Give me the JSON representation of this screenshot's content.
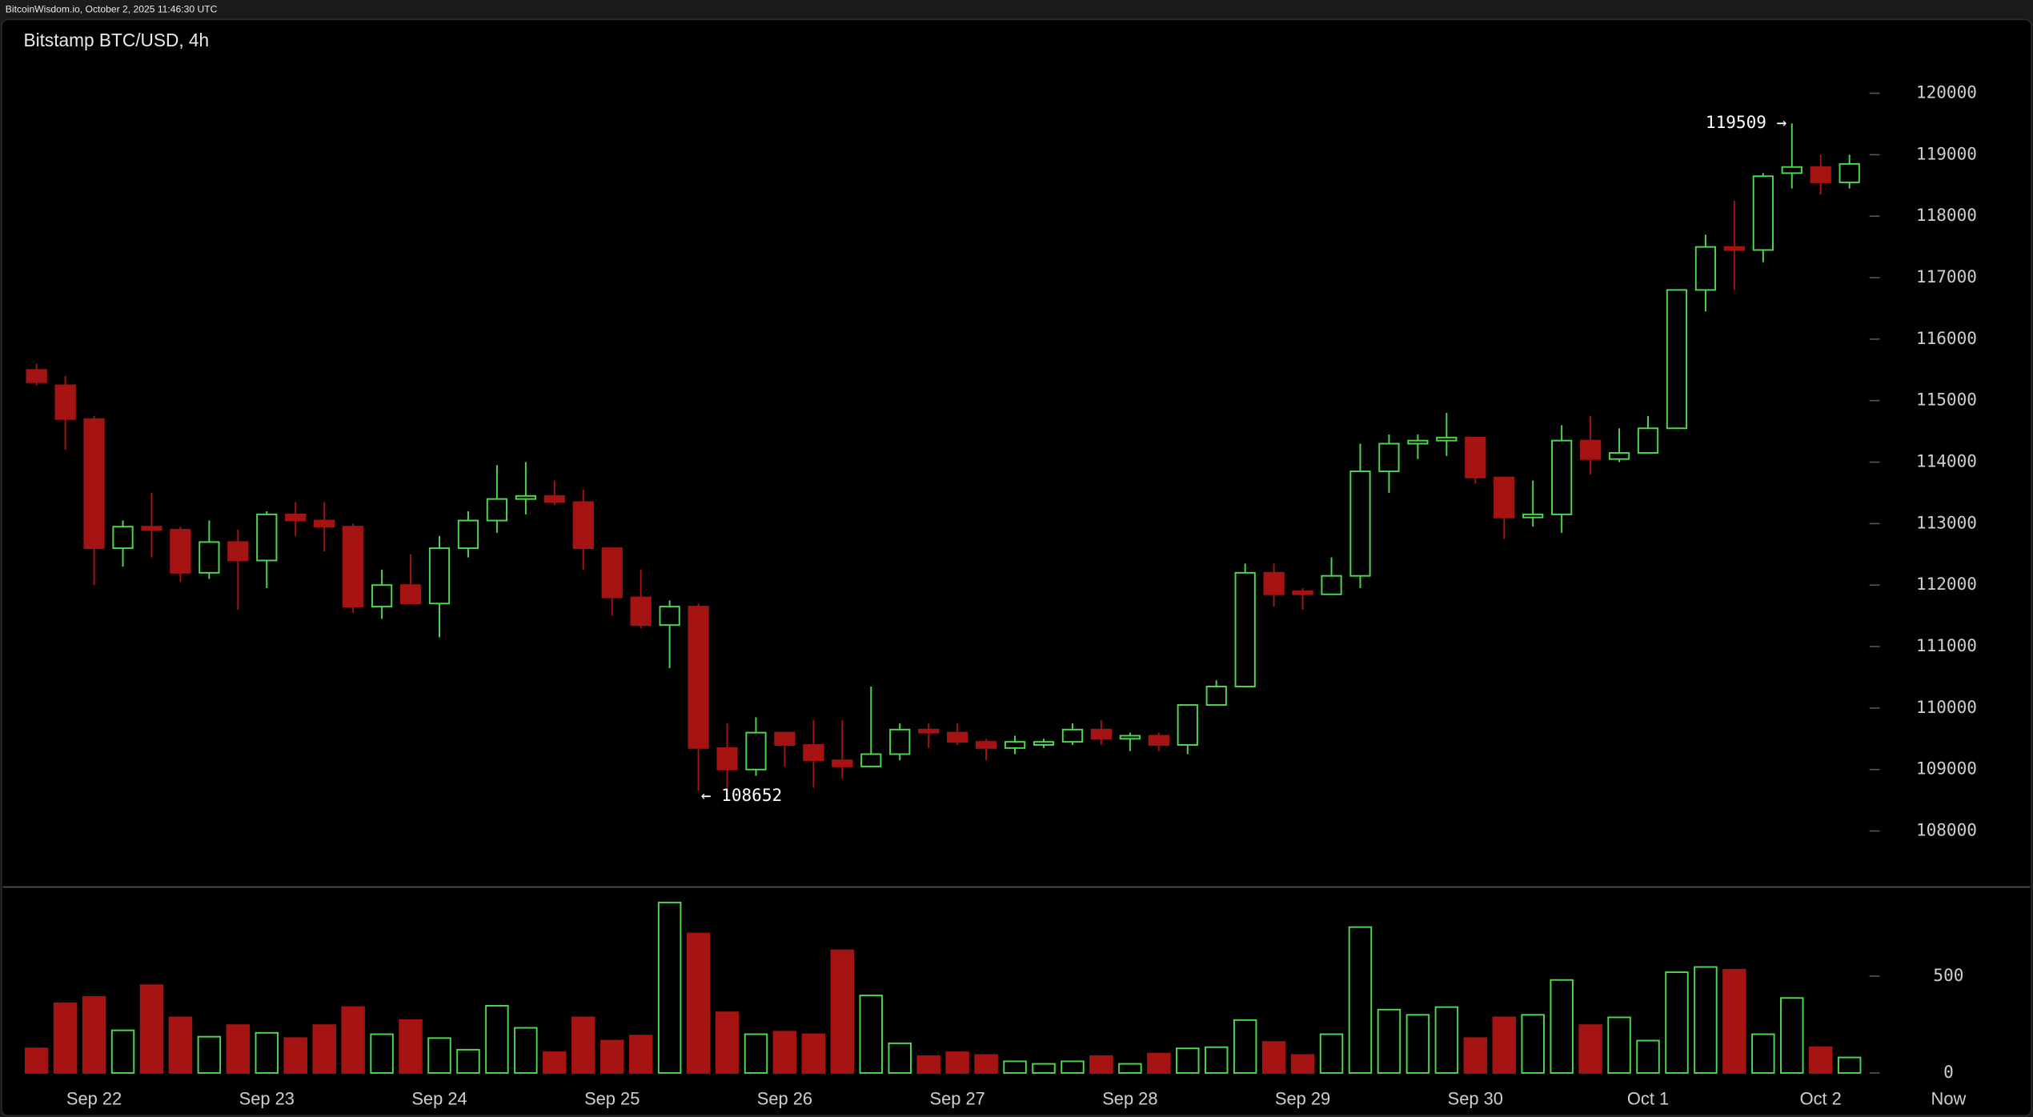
{
  "chart_data": {
    "type": "candlestick",
    "header": "BitcoinWisdom.io, October 2, 2025 11:46:30 UTC",
    "title": "Bitstamp BTC/USD, 4h",
    "categories": [
      null,
      null,
      "Sep 22",
      null,
      null,
      null,
      null,
      null,
      "Sep 23",
      null,
      null,
      null,
      null,
      null,
      "Sep 24",
      null,
      null,
      null,
      null,
      null,
      "Sep 25",
      null,
      null,
      null,
      null,
      null,
      "Sep 26",
      null,
      null,
      null,
      null,
      null,
      "Sep 27",
      null,
      null,
      null,
      null,
      null,
      "Sep 28",
      null,
      null,
      null,
      null,
      null,
      "Sep 29",
      null,
      null,
      null,
      null,
      null,
      "Sep 30",
      null,
      null,
      null,
      null,
      null,
      "Oct 1",
      null,
      null,
      null,
      null,
      null,
      "Oct 2",
      null
    ],
    "now_label": "Now",
    "open": [
      115500,
      115250,
      114700,
      112600,
      112950,
      112900,
      112200,
      112700,
      112400,
      113150,
      113050,
      112950,
      111650,
      112000,
      111700,
      112600,
      113050,
      113400,
      113450,
      113350,
      112600,
      111800,
      111350,
      111650,
      109350,
      109000,
      109600,
      109400,
      109150,
      109050,
      109250,
      109650,
      109600,
      109450,
      109350,
      109400,
      109450,
      109650,
      109500,
      109550,
      109400,
      110050,
      110350,
      112200,
      111900,
      111850,
      112150,
      113850,
      114300,
      114350,
      114400,
      113750,
      113100,
      113150,
      114350,
      114050,
      114150,
      114550,
      116800,
      117500,
      117450,
      118700,
      118800,
      118550
    ],
    "high": [
      115600,
      115400,
      114750,
      113050,
      113500,
      112950,
      113050,
      112900,
      113200,
      113350,
      113350,
      113000,
      112250,
      112500,
      112800,
      113200,
      113950,
      114000,
      113700,
      113550,
      112600,
      112250,
      111750,
      111700,
      109750,
      109850,
      109600,
      109800,
      109800,
      110350,
      109750,
      109750,
      109750,
      109500,
      109550,
      109500,
      109750,
      109800,
      109600,
      109600,
      110050,
      110450,
      112350,
      112350,
      111950,
      112450,
      114300,
      114450,
      114450,
      114800,
      114400,
      113750,
      113700,
      114600,
      114750,
      114550,
      114750,
      116800,
      117700,
      118250,
      118700,
      119509,
      119000,
      119000
    ],
    "low": [
      115250,
      114200,
      112000,
      112300,
      112450,
      112050,
      112100,
      111600,
      111950,
      112800,
      112550,
      111550,
      111450,
      111700,
      111150,
      112450,
      112850,
      113150,
      113300,
      112250,
      111500,
      111300,
      110650,
      108652,
      108700,
      108900,
      109050,
      108700,
      108850,
      109050,
      109150,
      109350,
      109400,
      109150,
      109250,
      109350,
      109400,
      109400,
      109300,
      109300,
      109250,
      110050,
      110350,
      111650,
      111600,
      111900,
      111950,
      113500,
      114050,
      114100,
      113650,
      112750,
      112950,
      112850,
      113800,
      114000,
      114150,
      114550,
      116450,
      116800,
      117250,
      118450,
      118350,
      118450
    ],
    "close": [
      115300,
      114700,
      112600,
      112950,
      112900,
      112200,
      112700,
      112400,
      113150,
      113050,
      112950,
      111650,
      112000,
      111700,
      112600,
      113050,
      113400,
      113450,
      113350,
      112600,
      111800,
      111350,
      111650,
      109350,
      109000,
      109600,
      109400,
      109150,
      109050,
      109250,
      109650,
      109600,
      109450,
      109350,
      109450,
      109450,
      109650,
      109500,
      109550,
      109400,
      110050,
      110350,
      112200,
      111850,
      111850,
      112150,
      113850,
      114300,
      114350,
      114400,
      113750,
      113100,
      113150,
      114350,
      114050,
      114150,
      114550,
      116800,
      117500,
      117450,
      118650,
      118800,
      118550,
      118850
    ],
    "volume": [
      127,
      360,
      393,
      220,
      453,
      287,
      187,
      247,
      207,
      180,
      247,
      340,
      200,
      273,
      180,
      120,
      347,
      233,
      107,
      287,
      167,
      193,
      880,
      720,
      313,
      200,
      213,
      200,
      633,
      400,
      153,
      87,
      107,
      93,
      60,
      47,
      60,
      87,
      47,
      100,
      127,
      133,
      273,
      160,
      93,
      200,
      753,
      327,
      300,
      340,
      180,
      287,
      300,
      480,
      247,
      287,
      167,
      520,
      547,
      533,
      200,
      387,
      133,
      80
    ],
    "up_color": "#4ed84e",
    "down_color": "#a51313",
    "ylim": [
      107100,
      121200
    ],
    "yticks": [
      108000,
      109000,
      110000,
      111000,
      112000,
      113000,
      114000,
      115000,
      116000,
      117000,
      118000,
      119000,
      120000
    ],
    "volume_lim": [
      0,
      950
    ],
    "volume_ticks": [
      0,
      500
    ],
    "annotations": [
      {
        "index": 61,
        "text": "119509 →"
      },
      {
        "index": 23,
        "text": "← 108652"
      }
    ]
  }
}
